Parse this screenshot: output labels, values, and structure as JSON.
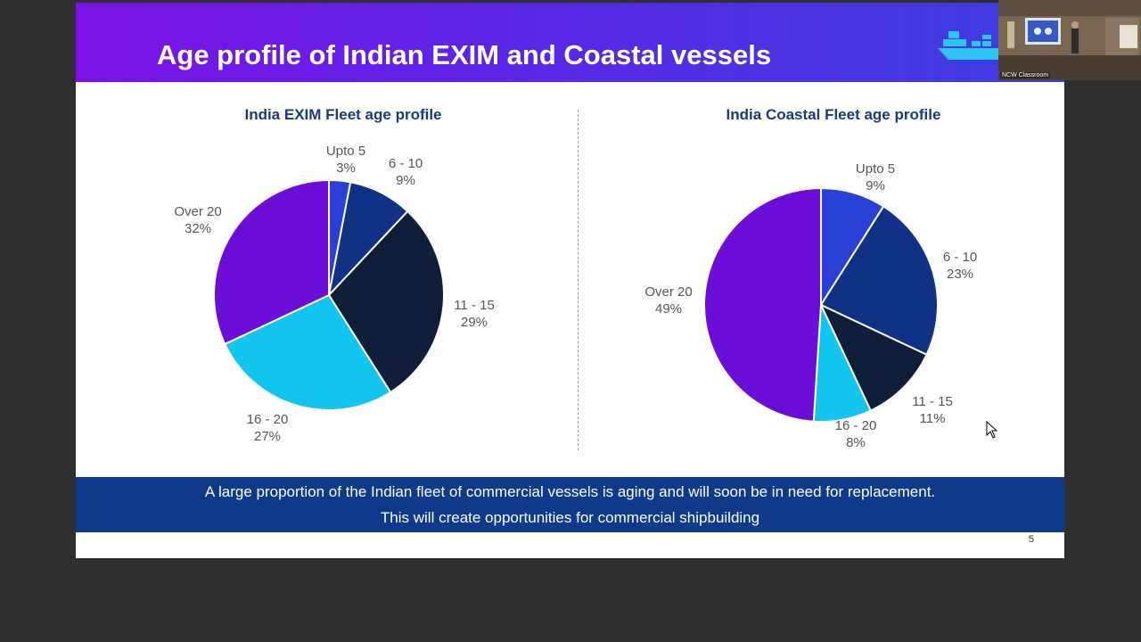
{
  "slide": {
    "title": "Age profile of Indian EXIM and Coastal vessels",
    "banner_line1": "A large proportion of the Indian fleet of commercial vessels is aging and will soon be in need for replacement.",
    "banner_line2": "This will create opportunities for commercial shipbuilding",
    "page_number": "5"
  },
  "webcam": {
    "label": "NCW Classroom"
  },
  "colors": {
    "header_start": "#7a12e6",
    "header_end": "#3d3fe0",
    "banner": "#0e3a8c",
    "title_text": "#1b3a7a",
    "segments": [
      "#2a3fd6",
      "#0f3287",
      "#0f1f3a",
      "#12c5ee",
      "#6b0fd8"
    ]
  },
  "chart_data": [
    {
      "type": "pie",
      "title": "India EXIM Fleet age profile",
      "categories": [
        "Upto 5",
        "6 - 10",
        "11 - 15",
        "16 - 20",
        "Over 20"
      ],
      "values": [
        3,
        9,
        29,
        27,
        32
      ],
      "value_labels": [
        "3%",
        "9%",
        "29%",
        "27%",
        "32%"
      ],
      "colors": [
        "#2a3fd6",
        "#0f3287",
        "#0f1f3a",
        "#12c5ee",
        "#6b0fd8"
      ]
    },
    {
      "type": "pie",
      "title": "India Coastal Fleet age profile",
      "categories": [
        "Upto 5",
        "6 - 10",
        "11 - 15",
        "16 - 20",
        "Over 20"
      ],
      "values": [
        9,
        23,
        11,
        8,
        49
      ],
      "value_labels": [
        "9%",
        "23%",
        "11%",
        "8%",
        "49%"
      ],
      "colors": [
        "#2a3fd6",
        "#0f3287",
        "#0f1f3a",
        "#12c5ee",
        "#6b0fd8"
      ]
    }
  ]
}
